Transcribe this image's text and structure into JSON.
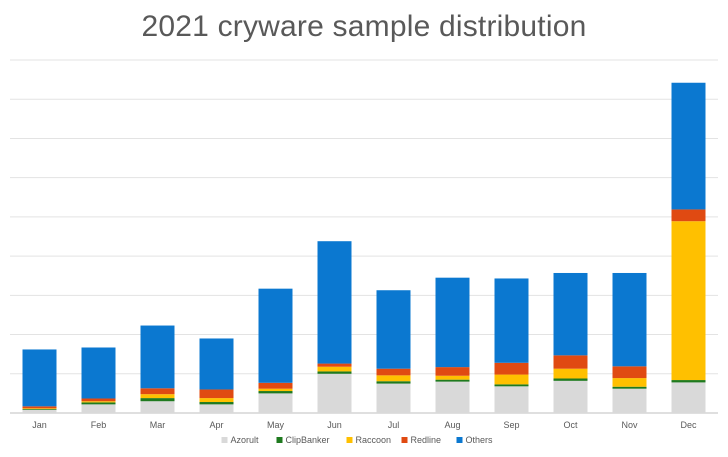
{
  "chart_data": {
    "type": "bar",
    "stacked": true,
    "title": "2021 cryware sample distribution",
    "xlabel": "",
    "ylabel": "",
    "categories": [
      "Jan",
      "Feb",
      "Mar",
      "Apr",
      "May",
      "Jun",
      "Jul",
      "Aug",
      "Sep",
      "Oct",
      "Nov",
      "Dec"
    ],
    "ylim": [
      0,
      9
    ],
    "grid": true,
    "legend_position": "bottom",
    "series": [
      {
        "name": "Azorult",
        "color": "#D9D9D9",
        "values": [
          0.08,
          0.22,
          0.3,
          0.22,
          0.5,
          1.0,
          0.75,
          0.8,
          0.68,
          0.82,
          0.62,
          0.78
        ]
      },
      {
        "name": "ClipBanker",
        "color": "#1F7A1F",
        "values": [
          0.02,
          0.05,
          0.08,
          0.06,
          0.06,
          0.06,
          0.06,
          0.05,
          0.05,
          0.06,
          0.05,
          0.06
        ]
      },
      {
        "name": "Raccoon",
        "color": "#FFC000",
        "values": [
          0.02,
          0.03,
          0.1,
          0.1,
          0.06,
          0.12,
          0.15,
          0.1,
          0.25,
          0.25,
          0.22,
          4.05
        ]
      },
      {
        "name": "Redline",
        "color": "#E04A12",
        "values": [
          0.05,
          0.07,
          0.15,
          0.22,
          0.15,
          0.08,
          0.17,
          0.22,
          0.3,
          0.34,
          0.3,
          0.3
        ]
      },
      {
        "name": "Others",
        "color": "#0B78D0",
        "values": [
          1.45,
          1.3,
          1.6,
          1.3,
          2.4,
          3.12,
          2.0,
          2.28,
          2.15,
          2.1,
          2.38,
          3.23
        ]
      }
    ]
  }
}
